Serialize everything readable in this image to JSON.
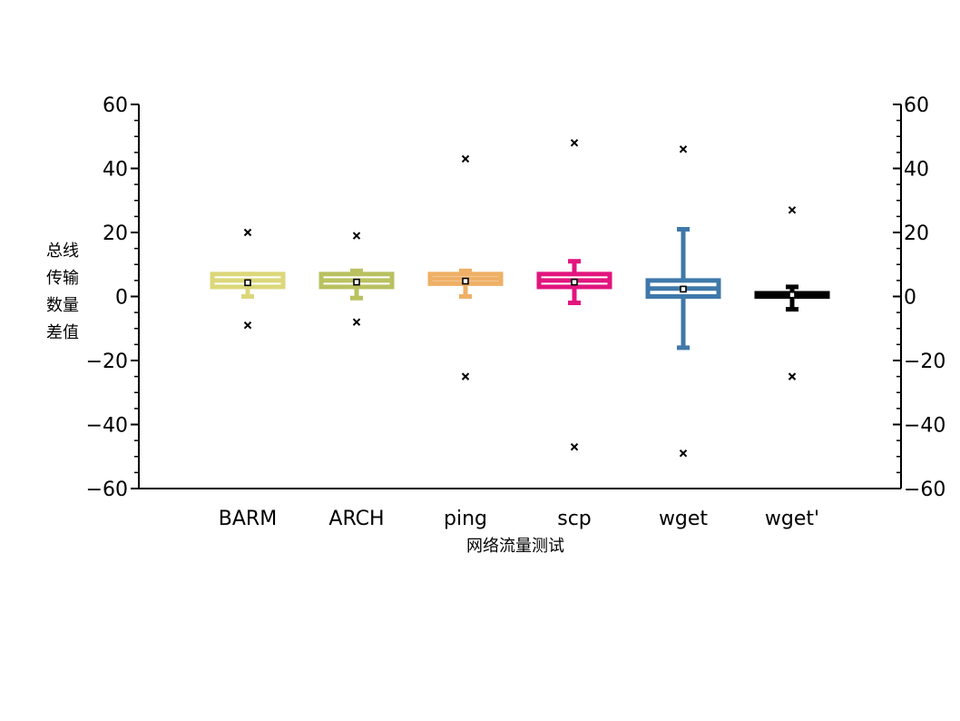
{
  "chart_data": {
    "type": "box",
    "xlabel": "网络流量测试",
    "ylabel_lines": [
      "总线",
      "传输",
      "数量",
      "差值"
    ],
    "ylim": [
      -60,
      60
    ],
    "yticks": [
      60,
      40,
      20,
      0,
      -20,
      -40,
      -60
    ],
    "ytick_labels": [
      "60",
      "40",
      "20",
      "0",
      "−20",
      "−40",
      "−60"
    ],
    "grid": false,
    "categories": [
      "BARM",
      "ARCH",
      "ping",
      "scp",
      "wget",
      "wget'"
    ],
    "boxes": [
      {
        "name": "BARM",
        "color": "#dcd77a",
        "whisker_low": 0,
        "q1": 3,
        "median": 5,
        "q3": 7,
        "whisker_high": 7,
        "mean": 4.3,
        "outliers": [
          20,
          -9
        ]
      },
      {
        "name": "ARCH",
        "color": "#b9c160",
        "whisker_low": -0.5,
        "q1": 3,
        "median": 5,
        "q3": 7,
        "whisker_high": 8,
        "mean": 4.5,
        "outliers": [
          19,
          -8
        ]
      },
      {
        "name": "ping",
        "color": "#eeb066",
        "whisker_low": 0,
        "q1": 4,
        "median": 5.5,
        "q3": 7,
        "whisker_high": 8,
        "mean": 4.8,
        "outliers": [
          43,
          -25
        ]
      },
      {
        "name": "scp",
        "color": "#e2157e",
        "whisker_low": -2,
        "q1": 3,
        "median": 5,
        "q3": 7,
        "whisker_high": 11,
        "mean": 4.5,
        "outliers": [
          48,
          -47
        ]
      },
      {
        "name": "wget",
        "color": "#3f78aa",
        "whisker_low": -16,
        "q1": 0,
        "median": 2.5,
        "q3": 5,
        "whisker_high": 21,
        "mean": 2.3,
        "outliers": [
          46,
          -49
        ]
      },
      {
        "name": "wget'",
        "color": "#000000",
        "whisker_low": -4,
        "q1": 0,
        "median": 0.5,
        "q3": 1,
        "whisker_high": 3,
        "mean": 0.5,
        "outliers": [
          27,
          -25
        ]
      }
    ]
  }
}
